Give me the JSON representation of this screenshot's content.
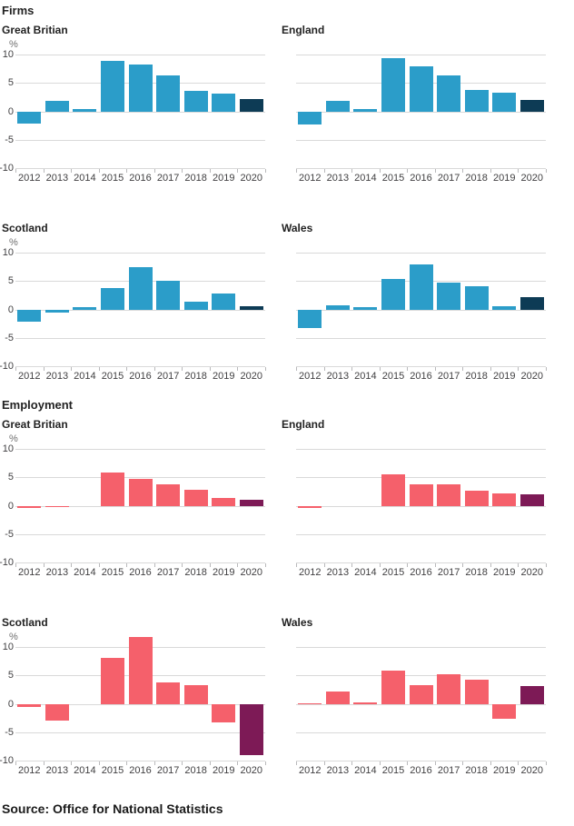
{
  "sections": [
    {
      "heading": "Firms"
    },
    {
      "heading": "Employment"
    }
  ],
  "source_note": "Source: Office for National Statistics",
  "colors": {
    "firms_bar": "#2b9dc9",
    "firms_final_bar": "#0d3b55",
    "employment_bar": "#f5606b",
    "employment_final_bar": "#7d1a56",
    "gridline": "#d9d9d9",
    "axis_tick": "#b9b9bb",
    "axis_text": "#414042",
    "unit_text": "#707070",
    "heading_text": "#222222"
  },
  "chart_data": [
    {
      "type": "bar",
      "section": "Firms",
      "title": "Great Britian",
      "categories": [
        "2012",
        "2013",
        "2014",
        "2015",
        "2016",
        "2017",
        "2018",
        "2019",
        "2020"
      ],
      "values": [
        -2.2,
        1.8,
        0.4,
        8.9,
        8.3,
        6.3,
        3.6,
        3.2,
        2.1
      ],
      "ylabel": "%",
      "ylim": [
        -10,
        10
      ],
      "yticks": [
        10,
        5,
        0,
        -5,
        -10
      ],
      "show_y_axis": true,
      "bar_color": "#2b9dc9",
      "final_bar_color": "#0d3b55",
      "grid": true,
      "legend": "none"
    },
    {
      "type": "bar",
      "section": "Firms",
      "title": "England",
      "categories": [
        "2012",
        "2013",
        "2014",
        "2015",
        "2016",
        "2017",
        "2018",
        "2019",
        "2020"
      ],
      "values": [
        -2.3,
        1.8,
        0.4,
        9.3,
        8.0,
        6.4,
        3.7,
        3.3,
        2.0
      ],
      "ylabel": "%",
      "ylim": [
        -10,
        10
      ],
      "yticks": [
        10,
        5,
        0,
        -5,
        -10
      ],
      "show_y_axis": false,
      "bar_color": "#2b9dc9",
      "final_bar_color": "#0d3b55",
      "grid": true,
      "legend": "none"
    },
    {
      "type": "bar",
      "section": "Firms",
      "title": "Scotland",
      "categories": [
        "2012",
        "2013",
        "2014",
        "2015",
        "2016",
        "2017",
        "2018",
        "2019",
        "2020"
      ],
      "values": [
        -2.1,
        -0.5,
        0.4,
        3.8,
        7.4,
        5.1,
        1.3,
        2.8,
        0.5
      ],
      "ylabel": "%",
      "ylim": [
        -10,
        10
      ],
      "yticks": [
        10,
        5,
        0,
        -5,
        -10
      ],
      "show_y_axis": true,
      "bar_color": "#2b9dc9",
      "final_bar_color": "#0d3b55",
      "grid": true,
      "legend": "none"
    },
    {
      "type": "bar",
      "section": "Firms",
      "title": "Wales",
      "categories": [
        "2012",
        "2013",
        "2014",
        "2015",
        "2016",
        "2017",
        "2018",
        "2019",
        "2020"
      ],
      "values": [
        -3.3,
        0.7,
        0.4,
        5.4,
        7.9,
        4.8,
        4.1,
        0.6,
        2.2
      ],
      "ylabel": "%",
      "ylim": [
        -10,
        10
      ],
      "yticks": [
        10,
        5,
        0,
        -5,
        -10
      ],
      "show_y_axis": false,
      "bar_color": "#2b9dc9",
      "final_bar_color": "#0d3b55",
      "grid": true,
      "legend": "none"
    },
    {
      "type": "bar",
      "section": "Employment",
      "title": "Great Britian",
      "categories": [
        "2012",
        "2013",
        "2014",
        "2015",
        "2016",
        "2017",
        "2018",
        "2019",
        "2020"
      ],
      "values": [
        -0.4,
        -0.1,
        0,
        5.9,
        4.7,
        3.8,
        2.8,
        1.4,
        1.0
      ],
      "ylabel": "%",
      "ylim": [
        -10,
        10
      ],
      "yticks": [
        10,
        5,
        0,
        -5,
        -10
      ],
      "show_y_axis": true,
      "bar_color": "#f5606b",
      "final_bar_color": "#7d1a56",
      "grid": true,
      "legend": "none"
    },
    {
      "type": "bar",
      "section": "Employment",
      "title": "England",
      "categories": [
        "2012",
        "2013",
        "2014",
        "2015",
        "2016",
        "2017",
        "2018",
        "2019",
        "2020"
      ],
      "values": [
        -0.4,
        0,
        0,
        5.5,
        3.8,
        3.7,
        2.6,
        2.1,
        2.0
      ],
      "ylabel": "%",
      "ylim": [
        -10,
        10
      ],
      "yticks": [
        10,
        5,
        0,
        -5,
        -10
      ],
      "show_y_axis": false,
      "bar_color": "#f5606b",
      "final_bar_color": "#7d1a56",
      "grid": true,
      "legend": "none"
    },
    {
      "type": "bar",
      "section": "Employment",
      "title": "Scotland",
      "categories": [
        "2012",
        "2013",
        "2014",
        "2015",
        "2016",
        "2017",
        "2018",
        "2019",
        "2020"
      ],
      "values": [
        -0.6,
        -2.9,
        0,
        8.1,
        11.8,
        3.8,
        3.3,
        -3.2,
        -9.1
      ],
      "ylabel": "%",
      "ylim": [
        -10,
        10
      ],
      "yticks": [
        10,
        5,
        0,
        -5,
        -10
      ],
      "show_y_axis": true,
      "bar_color": "#f5606b",
      "final_bar_color": "#7d1a56",
      "grid": true,
      "legend": "none"
    },
    {
      "type": "bar",
      "section": "Employment",
      "title": "Wales",
      "categories": [
        "2012",
        "2013",
        "2014",
        "2015",
        "2016",
        "2017",
        "2018",
        "2019",
        "2020"
      ],
      "values": [
        0.1,
        2.2,
        0.3,
        5.8,
        3.3,
        5.2,
        4.2,
        -2.6,
        3.1
      ],
      "ylabel": "%",
      "ylim": [
        -10,
        10
      ],
      "yticks": [
        10,
        5,
        0,
        -5,
        -10
      ],
      "show_y_axis": false,
      "bar_color": "#f5606b",
      "final_bar_color": "#7d1a56",
      "grid": true,
      "legend": "none"
    }
  ]
}
